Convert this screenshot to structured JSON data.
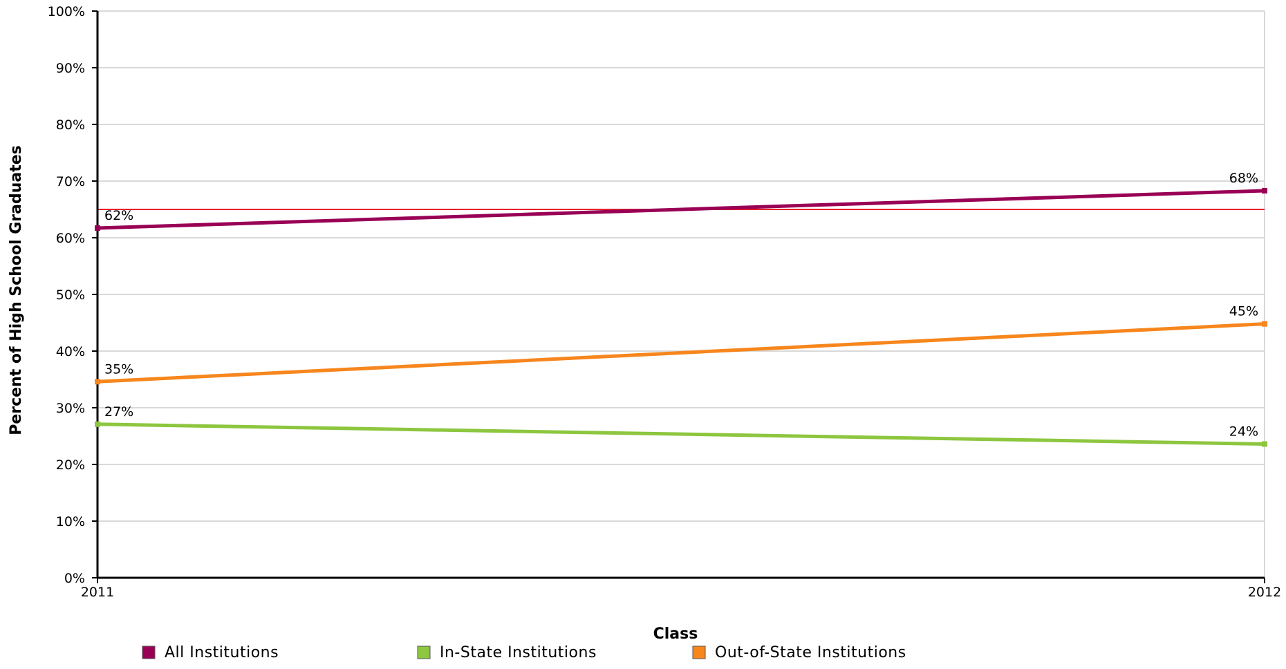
{
  "chart_data": {
    "type": "line",
    "title": "",
    "xlabel": "Class",
    "ylabel": "Percent of High School Graduates",
    "x": [
      "2011",
      "2012"
    ],
    "ylim": [
      0,
      100
    ],
    "yticks": [
      "0%",
      "10%",
      "20%",
      "30%",
      "40%",
      "50%",
      "60%",
      "70%",
      "80%",
      "90%",
      "100%"
    ],
    "grid": true,
    "legend_position": "bottom",
    "series": [
      {
        "name": "All Institutions",
        "values": [
          61.7,
          68.3
        ],
        "labels": [
          "62%",
          "68%"
        ],
        "color": "#990055"
      },
      {
        "name": "In-State Institutions",
        "values": [
          27.1,
          23.6
        ],
        "labels": [
          "27%",
          "24%"
        ],
        "color": "#8DC63F"
      },
      {
        "name": "Out-of-State Institutions",
        "values": [
          34.6,
          44.8
        ],
        "labels": [
          "35%",
          "45%"
        ],
        "color": "#F7861D"
      }
    ],
    "reference_lines": [
      {
        "value": 65,
        "color": "#E8202A"
      }
    ]
  }
}
